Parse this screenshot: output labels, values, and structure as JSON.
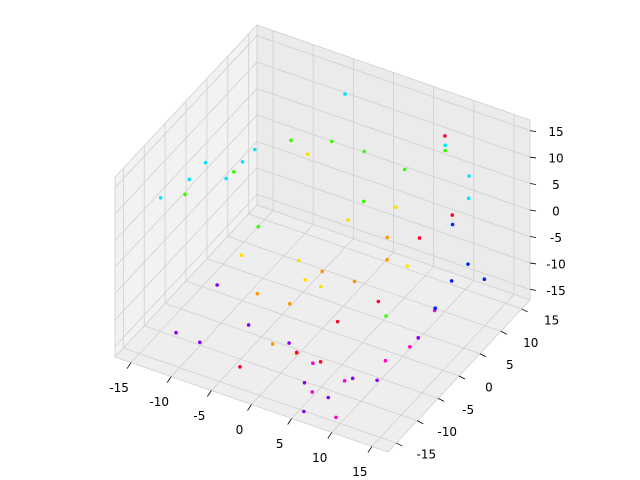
{
  "chart_data": {
    "type": "scatter3d",
    "xlim": [
      -17,
      17
    ],
    "ylim": [
      -17,
      17
    ],
    "zlim": [
      -17,
      17
    ],
    "xticks": [
      -15,
      -10,
      -5,
      0,
      5,
      10,
      15
    ],
    "yticks": [
      -15,
      -10,
      -5,
      0,
      5,
      10,
      15
    ],
    "zticks": [
      -15,
      -10,
      -5,
      0,
      5,
      10,
      15
    ],
    "grid": true,
    "series": [
      {
        "color": "#00e5ff",
        "x": [
          -16,
          -14,
          -13,
          -12,
          -11,
          -10,
          12,
          13,
          8,
          -5
        ],
        "y": [
          -8,
          -5,
          -3,
          0,
          2,
          3,
          12,
          10,
          14,
          15
        ],
        "z": [
          6,
          8,
          10,
          5,
          7,
          9,
          8,
          6,
          10,
          12
        ]
      },
      {
        "color": "#33ff00",
        "x": [
          -14,
          -10,
          -6,
          -3,
          0,
          4,
          8,
          -8,
          2,
          10
        ],
        "y": [
          -6,
          -2,
          4,
          8,
          10,
          12,
          14,
          0,
          6,
          -4
        ],
        "z": [
          6,
          9,
          12,
          10,
          8,
          5,
          9,
          -2,
          3,
          -6
        ]
      },
      {
        "color": "#ffdd00",
        "x": [
          -8,
          -4,
          2,
          6,
          -2,
          5,
          9,
          -6
        ],
        "y": [
          -4,
          2,
          -8,
          6,
          10,
          -10,
          3,
          8
        ],
        "z": [
          -4,
          -8,
          0,
          4,
          -6,
          2,
          -3,
          6
        ]
      },
      {
        "color": "#ff9900",
        "x": [
          -5,
          -2,
          1,
          4,
          7,
          -1,
          3,
          6
        ],
        "y": [
          -6,
          -4,
          -2,
          0,
          2,
          -10,
          -12,
          4
        ],
        "z": [
          -8,
          -10,
          -4,
          -6,
          -2,
          -12,
          -10,
          0
        ]
      },
      {
        "color": "#ff0030",
        "x": [
          2,
          5,
          8,
          10,
          12,
          -3,
          6,
          9
        ],
        "y": [
          -10,
          -6,
          -2,
          4,
          8,
          -14,
          -12,
          12
        ],
        "z": [
          -12,
          -8,
          -6,
          2,
          4,
          -14,
          -10,
          14
        ]
      },
      {
        "color": "#ff00cc",
        "x": [
          6,
          9,
          12,
          14,
          15,
          10,
          4
        ],
        "y": [
          -14,
          -12,
          -8,
          -6,
          -2,
          -16,
          -10
        ],
        "z": [
          -14,
          -12,
          -10,
          -8,
          -4,
          -15,
          -13
        ]
      },
      {
        "color": "#8800ff",
        "x": [
          -12,
          -8,
          -4,
          0,
          4,
          8,
          12,
          14,
          -10,
          6,
          10
        ],
        "y": [
          -12,
          -14,
          -10,
          -8,
          -12,
          -14,
          -10,
          -4,
          -6,
          -16,
          -12
        ],
        "z": [
          -14,
          -12,
          -10,
          -13,
          -15,
          -14,
          -12,
          -8,
          -9,
          -16,
          -11
        ]
      },
      {
        "color": "#0022ff",
        "x": [
          14,
          15,
          16,
          13,
          11
        ],
        "y": [
          4,
          6,
          8,
          2,
          10
        ],
        "z": [
          -4,
          -2,
          -6,
          -8,
          0
        ]
      }
    ]
  }
}
